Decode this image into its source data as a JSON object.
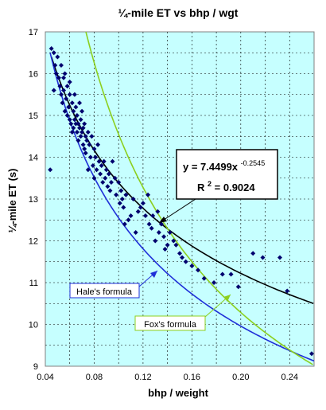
{
  "chart_data": {
    "type": "scatter",
    "title": "¼-mile ET vs bhp / wgt",
    "xlabel": "bhp / weight",
    "ylabel": "¼-mile ET (s)",
    "xlim": [
      0.04,
      0.26
    ],
    "ylim": [
      9,
      17
    ],
    "x_ticks": [
      "0.04",
      "0.08",
      "0.12",
      "0.16",
      "0.20",
      "0.24"
    ],
    "y_ticks": [
      "9",
      "10",
      "11",
      "12",
      "13",
      "14",
      "15",
      "16",
      "17"
    ],
    "grid": true,
    "plot_background": "#c6ffff",
    "colors": {
      "points": "#00006e",
      "power_fit": "#000000",
      "hale": "#1f2fd8",
      "fox": "#8ccf1e",
      "label_box_border": "#000000"
    },
    "series": [
      {
        "kind": "points",
        "x": [
          0.044,
          0.045,
          0.047,
          0.047,
          0.048,
          0.049,
          0.05,
          0.051,
          0.052,
          0.053,
          0.053,
          0.054,
          0.055,
          0.055,
          0.056,
          0.056,
          0.057,
          0.058,
          0.058,
          0.059,
          0.06,
          0.06,
          0.06,
          0.061,
          0.062,
          0.062,
          0.063,
          0.063,
          0.064,
          0.064,
          0.065,
          0.065,
          0.066,
          0.066,
          0.067,
          0.067,
          0.068,
          0.068,
          0.069,
          0.069,
          0.07,
          0.07,
          0.071,
          0.071,
          0.072,
          0.072,
          0.073,
          0.073,
          0.074,
          0.075,
          0.075,
          0.076,
          0.077,
          0.078,
          0.079,
          0.08,
          0.08,
          0.081,
          0.082,
          0.083,
          0.084,
          0.085,
          0.086,
          0.087,
          0.088,
          0.089,
          0.09,
          0.091,
          0.092,
          0.093,
          0.094,
          0.095,
          0.097,
          0.098,
          0.1,
          0.101,
          0.102,
          0.103,
          0.104,
          0.105,
          0.106,
          0.108,
          0.11,
          0.112,
          0.114,
          0.116,
          0.118,
          0.12,
          0.122,
          0.124,
          0.125,
          0.127,
          0.128,
          0.13,
          0.132,
          0.133,
          0.135,
          0.137,
          0.138,
          0.14,
          0.142,
          0.145,
          0.147,
          0.15,
          0.152,
          0.155,
          0.16,
          0.165,
          0.17,
          0.178,
          0.185,
          0.192,
          0.198,
          0.21,
          0.218,
          0.232,
          0.238,
          0.258
        ],
        "y": [
          13.7,
          16.6,
          16.5,
          15.6,
          16.2,
          16.0,
          16.4,
          15.9,
          15.7,
          15.5,
          16.2,
          15.3,
          15.6,
          15.9,
          15.1,
          16.0,
          15.4,
          15.0,
          15.7,
          15.2,
          14.9,
          15.5,
          15.8,
          14.8,
          15.3,
          14.6,
          15.1,
          14.7,
          15.5,
          14.9,
          14.8,
          15.2,
          14.6,
          15.0,
          14.8,
          14.4,
          15.3,
          14.7,
          14.5,
          14.9,
          14.6,
          15.1,
          14.3,
          14.7,
          14.8,
          14.2,
          14.5,
          14.1,
          14.4,
          14.6,
          13.7,
          14.3,
          14.0,
          14.5,
          13.8,
          14.2,
          13.5,
          14.0,
          13.7,
          14.3,
          13.9,
          13.6,
          13.8,
          13.4,
          13.9,
          13.5,
          13.7,
          13.3,
          13.6,
          13.2,
          13.4,
          13.9,
          13.5,
          13.1,
          13.4,
          12.9,
          13.2,
          13.0,
          12.8,
          12.4,
          13.1,
          12.5,
          12.6,
          13.0,
          12.2,
          12.7,
          12.8,
          12.9,
          12.6,
          13.1,
          12.4,
          12.3,
          12.6,
          12.0,
          12.7,
          12.2,
          12.4,
          12.1,
          11.8,
          11.9,
          12.2,
          12.0,
          11.9,
          11.7,
          11.6,
          11.5,
          11.4,
          11.3,
          11.1,
          11.0,
          11.2,
          11.2,
          10.9,
          11.7,
          11.6,
          11.6,
          10.8,
          9.3
        ]
      },
      {
        "kind": "power_fit",
        "a": 7.4499,
        "b": -0.2545
      },
      {
        "kind": "hale",
        "name": "Hale's formula",
        "a": 5.825,
        "b": -0.3333
      },
      {
        "kind": "fox",
        "name": "Fox's formula",
        "a": 4.6,
        "b": -0.5
      }
    ],
    "annotations": {
      "equation_prefix": "y = 7.4499x",
      "equation_exponent": "-0.2545",
      "r2_prefix": "R",
      "r2_superscript": "2",
      "r2_suffix": " = 0.9024",
      "hale_label": "Hale's formula",
      "fox_label": "Fox's formula"
    }
  }
}
